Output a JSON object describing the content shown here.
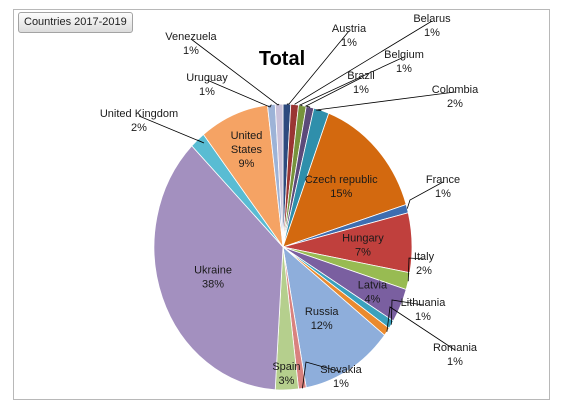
{
  "filter_button": "Countries 2017-2019",
  "chart_data": {
    "type": "pie",
    "title": "Total",
    "slices": [
      {
        "label": "Austria",
        "value": 1,
        "pct": "1%",
        "color": "#2d4a7e"
      },
      {
        "label": "Belarus",
        "value": 1,
        "pct": "1%",
        "color": "#9a3533"
      },
      {
        "label": "Belgium",
        "value": 1,
        "pct": "1%",
        "color": "#77933c"
      },
      {
        "label": "Brazil",
        "value": 1,
        "pct": "1%",
        "color": "#5c4a7a"
      },
      {
        "label": "Colombia",
        "value": 2,
        "pct": "2%",
        "color": "#2f8fab"
      },
      {
        "label": "Czech republic",
        "value": 15,
        "pct": "15%",
        "color": "#d3690f"
      },
      {
        "label": "France",
        "value": 1,
        "pct": "1%",
        "color": "#3d6db0"
      },
      {
        "label": "Hungary",
        "value": 7,
        "pct": "7%",
        "color": "#c0403d"
      },
      {
        "label": "Italy",
        "value": 2,
        "pct": "2%",
        "color": "#98bb52"
      },
      {
        "label": "Latvia",
        "value": 4,
        "pct": "4%",
        "color": "#7a5fa0"
      },
      {
        "label": "Lithuania",
        "value": 1,
        "pct": "1%",
        "color": "#3aa1bd"
      },
      {
        "label": "Romania",
        "value": 1,
        "pct": "1%",
        "color": "#ea8a2e"
      },
      {
        "label": "Russia",
        "value": 12,
        "pct": "12%",
        "color": "#8eaedb"
      },
      {
        "label": "Slovakia",
        "value": 1,
        "pct": "1%",
        "color": "#d9827f"
      },
      {
        "label": "Spain",
        "value": 3,
        "pct": "3%",
        "color": "#b5cf8d"
      },
      {
        "label": "Ukraine",
        "value": 38,
        "pct": "38%",
        "color": "#a390bf"
      },
      {
        "label": "United Kingdom",
        "value": 2,
        "pct": "2%",
        "color": "#59bcd3"
      },
      {
        "label": "United States",
        "value": 9,
        "pct": "9%",
        "color": "#f5a364"
      },
      {
        "label": "Uruguay",
        "value": 1,
        "pct": "1%",
        "color": "#9db3d7"
      },
      {
        "label": "Venezuela",
        "value": 1,
        "pct": "1%",
        "color": "#c9c0d9"
      }
    ]
  }
}
